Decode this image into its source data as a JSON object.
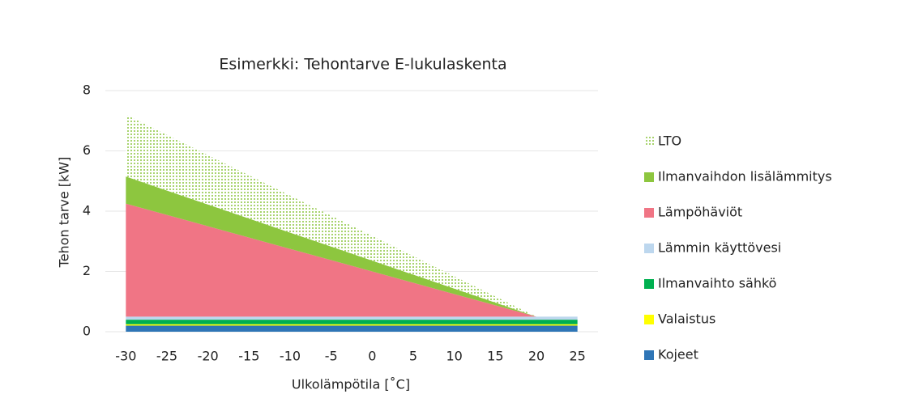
{
  "chart_data": {
    "type": "stacked_area",
    "title": "Esimerkki: Tehontarve E-lukulaskenta",
    "xlabel": "Ulkolämpötila [˚C]",
    "ylabel": "Tehon tarve [kW]",
    "x": [
      -30,
      -25,
      -20,
      -15,
      -10,
      -5,
      0,
      5,
      10,
      15,
      20,
      25
    ],
    "xlim": [
      -32.5,
      27.5
    ],
    "xticks": [
      -30,
      -25,
      -20,
      -15,
      -10,
      -5,
      0,
      5,
      10,
      15,
      20,
      25
    ],
    "ylim": [
      0,
      8
    ],
    "yticks": [
      0,
      2,
      4,
      6,
      8
    ],
    "grid": true,
    "legend": "right",
    "series": [
      {
        "name": "Kojeet",
        "color": "#2e75b6",
        "values": [
          0.2,
          0.2,
          0.2,
          0.2,
          0.2,
          0.2,
          0.2,
          0.2,
          0.2,
          0.2,
          0.2,
          0.2
        ]
      },
      {
        "name": "Valaistus",
        "color": "#ffff00",
        "values": [
          0.05,
          0.05,
          0.05,
          0.05,
          0.05,
          0.05,
          0.05,
          0.05,
          0.05,
          0.05,
          0.05,
          0.05
        ]
      },
      {
        "name": "Ilmanvaihto sähkö",
        "color": "#00b050",
        "values": [
          0.15,
          0.15,
          0.15,
          0.15,
          0.15,
          0.15,
          0.15,
          0.15,
          0.15,
          0.15,
          0.15,
          0.15
        ]
      },
      {
        "name": "Lämmin käyttövesi",
        "color": "#bdd7ee",
        "values": [
          0.1,
          0.1,
          0.1,
          0.1,
          0.1,
          0.1,
          0.1,
          0.1,
          0.1,
          0.1,
          0.1,
          0.1
        ]
      },
      {
        "name": "Lämpöhäviöt",
        "color": "#f07585",
        "values": [
          3.75,
          3.375,
          3.0,
          2.625,
          2.25,
          1.875,
          1.5,
          1.125,
          0.75,
          0.375,
          0,
          0
        ]
      },
      {
        "name": "Ilmanvaihdon lisälämmitys",
        "color": "#8dc63f",
        "values": [
          0.9,
          0.81,
          0.72,
          0.63,
          0.54,
          0.45,
          0.36,
          0.27,
          0.18,
          0.09,
          0,
          0
        ]
      },
      {
        "name": "LTO",
        "color": "#8dc63f",
        "fill_pattern": "dots",
        "values": [
          2.05,
          1.845,
          1.64,
          1.435,
          1.23,
          1.025,
          0.82,
          0.615,
          0.41,
          0.205,
          0,
          0
        ]
      }
    ]
  }
}
